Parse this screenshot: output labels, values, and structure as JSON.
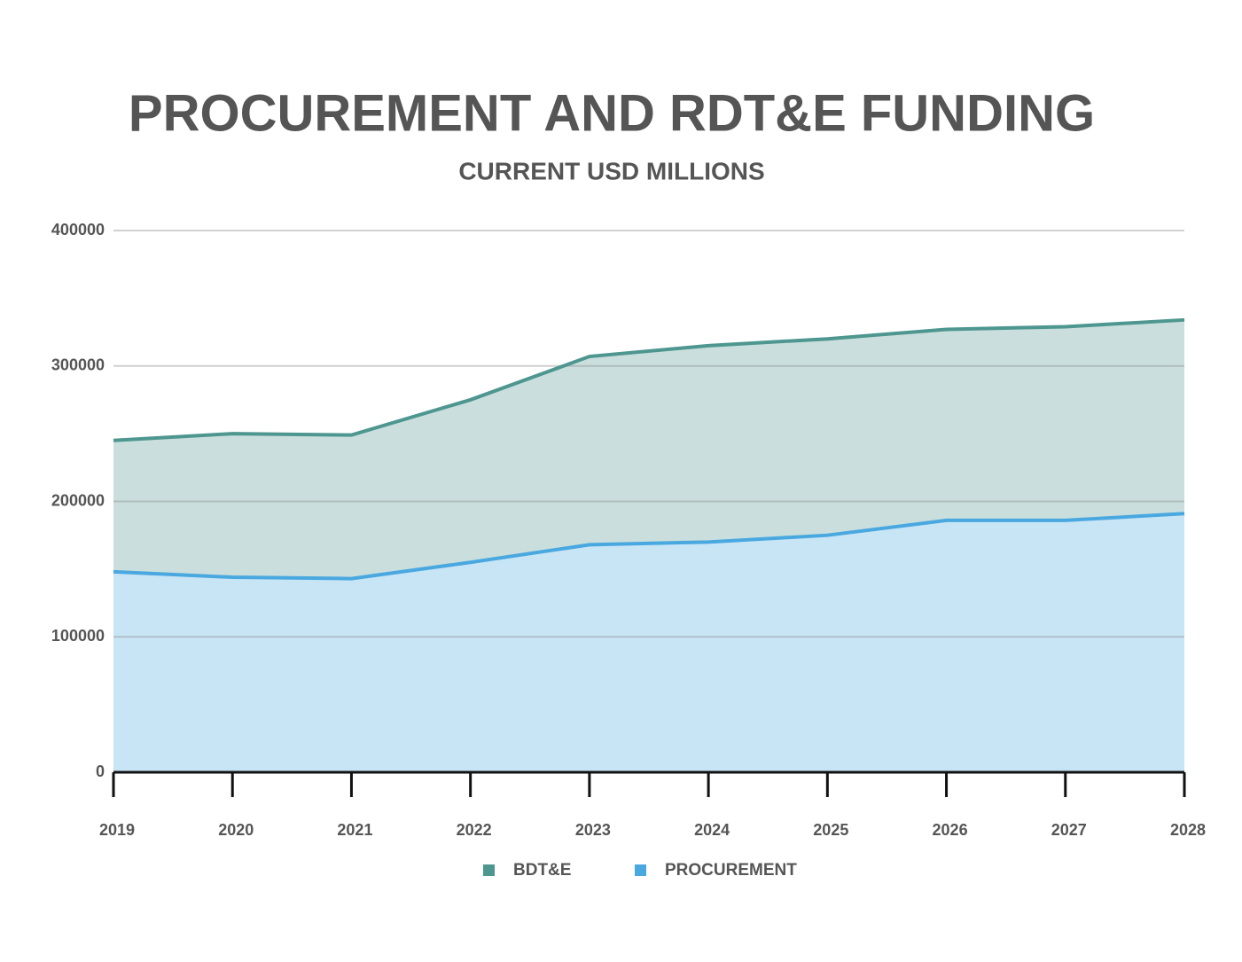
{
  "chart_data": {
    "type": "stacked_area",
    "title": "PROCUREMENT AND RDT&E FUNDING",
    "subtitle": "CURRENT USD MILLIONS",
    "categories": [
      "2019",
      "2020",
      "2021",
      "2022",
      "2023",
      "2024",
      "2025",
      "2026",
      "2027",
      "2028"
    ],
    "series": [
      {
        "name": "PROCUREMENT",
        "color": "#4aa8e0",
        "values": [
          148000,
          144000,
          143000,
          155000,
          168000,
          170000,
          175000,
          186000,
          186000,
          191000
        ]
      },
      {
        "name": "BDT&E",
        "color": "#4e9690",
        "values": [
          97000,
          106000,
          106000,
          120000,
          139000,
          145000,
          145000,
          141000,
          143000,
          143000
        ]
      }
    ],
    "ylim": [
      0,
      400000
    ],
    "yticks": [
      0,
      100000,
      200000,
      300000,
      400000
    ],
    "grid": true
  }
}
